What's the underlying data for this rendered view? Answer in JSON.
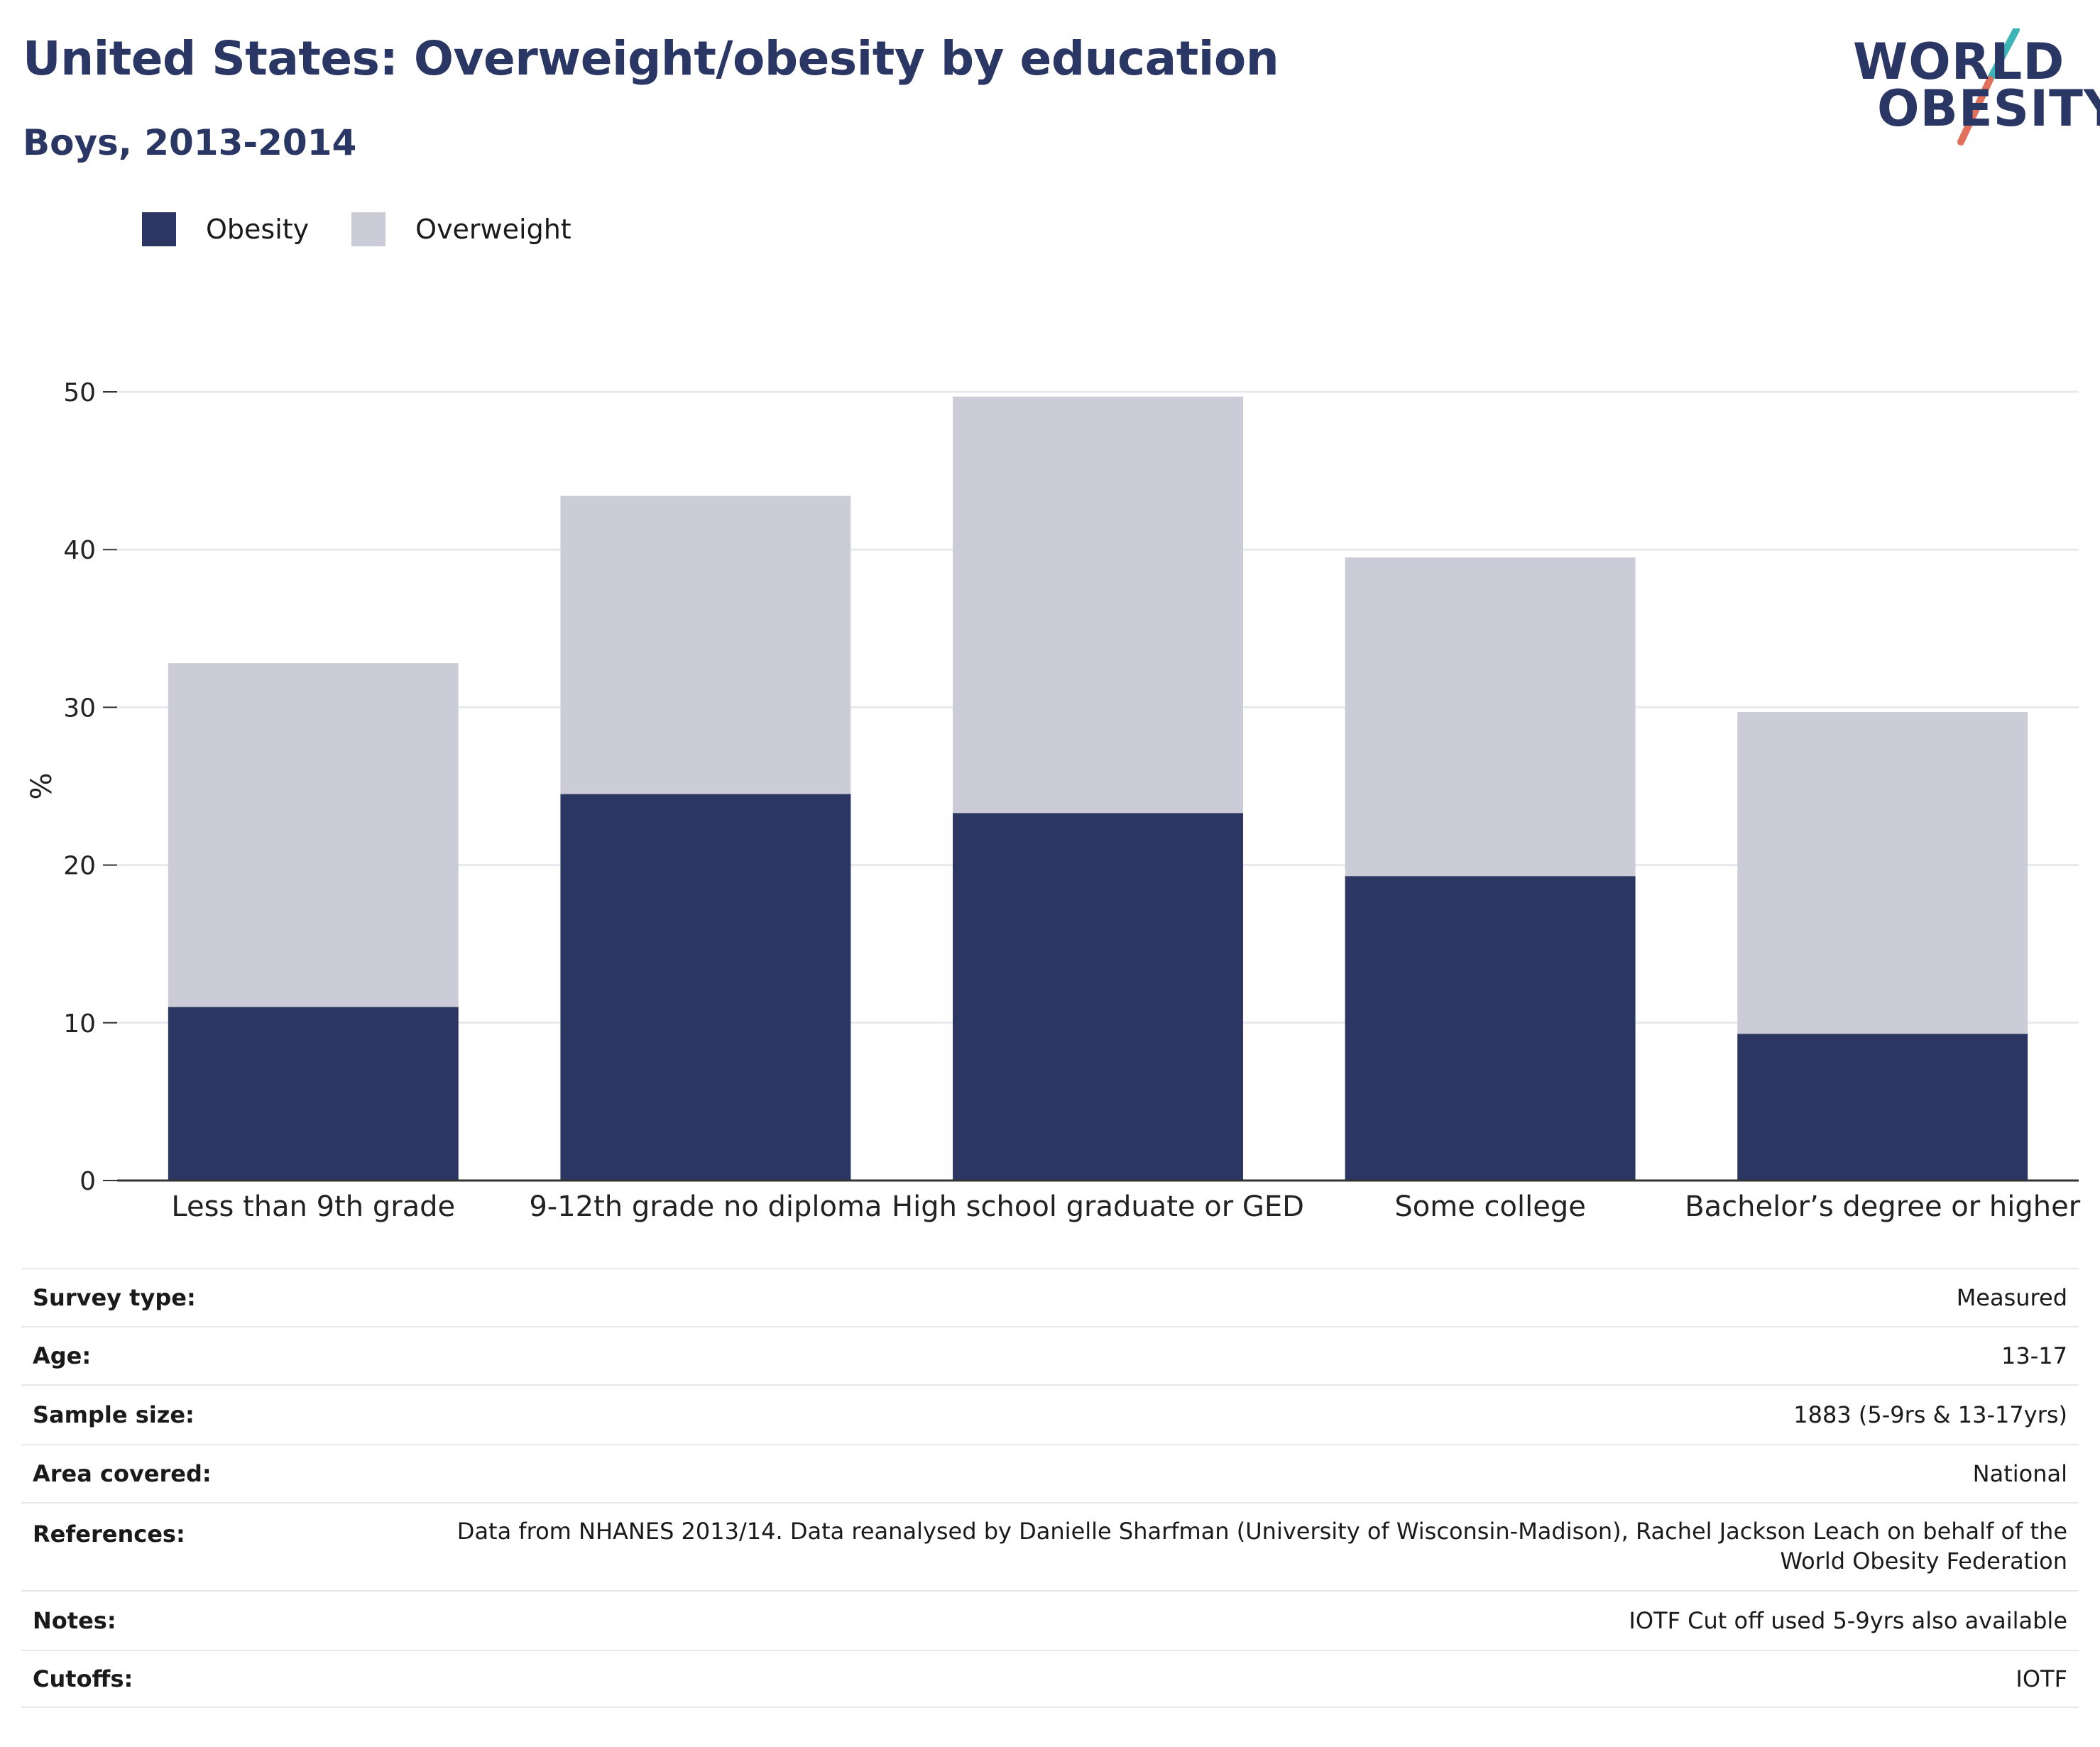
{
  "header": {
    "title": "United States: Overweight/obesity by education",
    "subtitle": "Boys, 2013-2014"
  },
  "logo": {
    "line1": "WORLD",
    "line2": "OBESITY"
  },
  "colors": {
    "obesity": "#2b3662",
    "overweight": "#cbccd8",
    "title": "#2a3663",
    "logo_teal": "#3cb4b8",
    "logo_coral": "#e0705c"
  },
  "legend": [
    {
      "label": "Obesity",
      "color": "#2b3662"
    },
    {
      "label": "Overweight",
      "color": "#cbccd8"
    }
  ],
  "chart_data": {
    "type": "bar",
    "stacked": true,
    "categories": [
      "Less than 9th grade",
      "9-12th grade no diploma",
      "High school graduate or GED",
      "Some college",
      "Bachelor’s degree or higher"
    ],
    "series": [
      {
        "name": "Obesity",
        "values": [
          11.0,
          24.5,
          23.3,
          19.3,
          9.3
        ]
      },
      {
        "name": "Overweight",
        "values": [
          21.8,
          18.9,
          26.4,
          20.2,
          20.4
        ]
      }
    ],
    "ylabel": "%",
    "ylim": [
      0,
      50
    ],
    "yticks": [
      0,
      10,
      20,
      30,
      40,
      50
    ],
    "grid": true,
    "legend_position": "top-left"
  },
  "info": [
    {
      "key": "Survey type:",
      "value": "Measured"
    },
    {
      "key": "Age:",
      "value": "13-17"
    },
    {
      "key": "Sample size:",
      "value": "1883 (5-9rs & 13-17yrs)"
    },
    {
      "key": "Area covered:",
      "value": "National"
    },
    {
      "key": "References:",
      "value": "Data from NHANES 2013/14. Data reanalysed by Danielle Sharfman (University of Wisconsin-Madison), Rachel Jackson Leach on behalf of the World Obesity Federation"
    },
    {
      "key": "Notes:",
      "value": "IOTF Cut off used 5-9yrs also available"
    },
    {
      "key": "Cutoffs:",
      "value": "IOTF"
    }
  ]
}
